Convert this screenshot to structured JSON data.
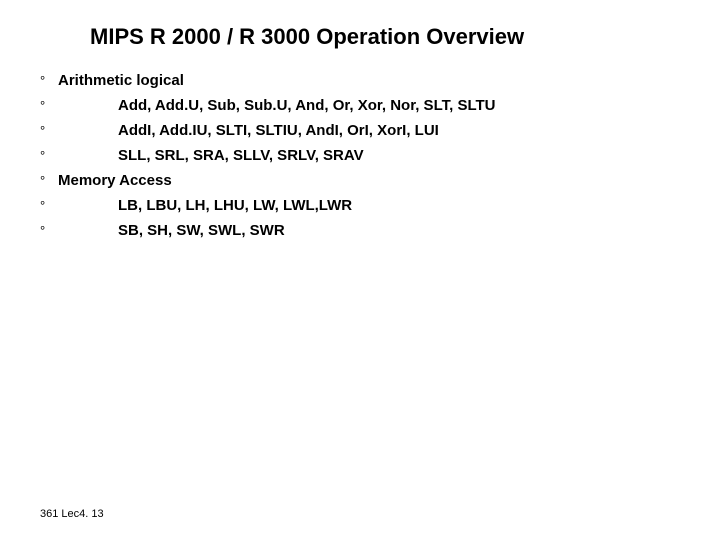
{
  "title": "MIPS R 2000 / R 3000  Operation Overview",
  "bullets": {
    "b1_header": "Arithmetic logical",
    "b2_item": "Add,  Add.U,  Sub,   Sub.U, And,  Or,  Xor, Nor, SLT, SLTU",
    "b3_item": "AddI, Add.IU, SLTI, SLTIU, AndI, OrI, XorI, LUI",
    "b4_item": "SLL, SRL, SRA, SLLV, SRLV, SRAV",
    "b5_header": "Memory Access",
    "b6_item": "LB, LBU, LH, LHU, LW, LWL,LWR",
    "b7_item": "SB, SH, SW, SWL, SWR"
  },
  "footer": "361  Lec4. 13",
  "style": {
    "background_color": "#ffffff",
    "text_color": "#000000",
    "title_fontsize": 22,
    "body_fontsize": 15,
    "footer_fontsize": 11,
    "bullet_marker": "°"
  }
}
